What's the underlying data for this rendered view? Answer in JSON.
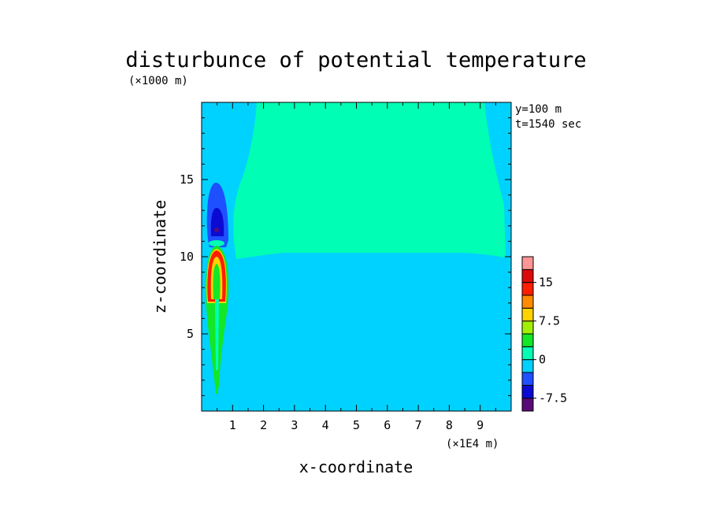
{
  "chart_data": {
    "type": "heatmap",
    "title": "disturbunce of potential temperature",
    "xlabel": "x-coordinate",
    "ylabel": "z-coordinate",
    "x_unit": "(×1E4 m)",
    "y_unit": "(×1000 m)",
    "annotations": [
      "y=100 m",
      "t=1540 sec"
    ],
    "xlim": [
      0,
      10
    ],
    "ylim": [
      0,
      20
    ],
    "x_ticks": [
      "1",
      "2",
      "3",
      "4",
      "5",
      "6",
      "7",
      "8",
      "9"
    ],
    "y_ticks": [
      "5",
      "10",
      "15"
    ],
    "colorbar": {
      "levels": [
        -10,
        -7.5,
        -5,
        -2.5,
        0,
        2.5,
        5,
        7.5,
        10,
        12.5,
        15,
        17.5,
        20
      ],
      "labels": [
        "-7.5",
        "0",
        "7.5",
        "15"
      ],
      "colors": [
        "#5a0a78",
        "#0a0ad2",
        "#1e50ff",
        "#00d2ff",
        "#00ffb4",
        "#14e628",
        "#a0f000",
        "#ffd200",
        "#ff8c00",
        "#ff1e00",
        "#dc0a0a",
        "#ff9696"
      ]
    },
    "regions": [
      {
        "description": "background",
        "value_range": [
          -2.5,
          0
        ],
        "color": "#00d2ff"
      },
      {
        "description": "upper layer above z≈10 for x≈1–9.5",
        "value_range": [
          0,
          2.5
        ],
        "color": "#00ffb4"
      },
      {
        "description": "cold anomaly near x≈0.5, z≈11–14.5",
        "value_range": [
          -7.5,
          -2.5
        ],
        "color": "#1e50ff"
      },
      {
        "description": "warm anomaly near x≈0.5, z≈6–10.5",
        "value_range": [
          2.5,
          17.5
        ],
        "color": "#ff1e00"
      }
    ]
  }
}
